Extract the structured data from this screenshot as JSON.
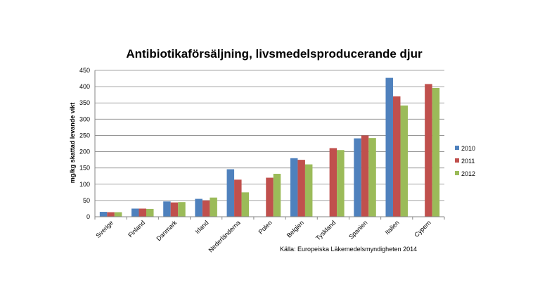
{
  "chart_data": {
    "type": "bar",
    "title": "Antibiotikaförsäljning, livsmedelsproducerande djur",
    "xlabel": "",
    "ylabel": "mg/kg skattad levande vikt",
    "ylim": [
      0,
      450
    ],
    "yticks": [
      0,
      50,
      100,
      150,
      200,
      250,
      300,
      350,
      400,
      450
    ],
    "grid": true,
    "legend": "right",
    "source": "Källa: Europeiska Läkemedelsmyndigheten  2014",
    "categories": [
      "Sverige",
      "Finland",
      "Danmark",
      "Irland",
      "Nederländerna",
      "Polen",
      "Belgien",
      "Tyskland",
      "Spanien",
      "Italien",
      "Cypern"
    ],
    "series": [
      {
        "name": "2010",
        "color": "#4F81BD",
        "values": [
          15,
          25,
          47,
          55,
          146,
          null,
          180,
          null,
          241,
          427,
          null
        ]
      },
      {
        "name": "2011",
        "color": "#C0504D",
        "values": [
          14,
          25,
          44,
          50,
          114,
          120,
          175,
          211,
          250,
          370,
          408
        ]
      },
      {
        "name": "2012",
        "color": "#9BBB59",
        "values": [
          14,
          24,
          45,
          59,
          75,
          132,
          161,
          205,
          242,
          342,
          396
        ]
      }
    ]
  }
}
